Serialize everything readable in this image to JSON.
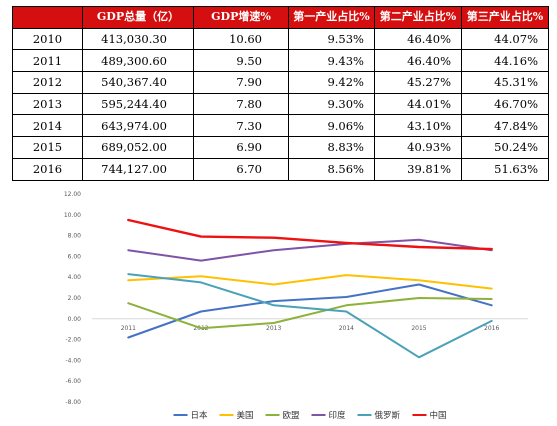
{
  "table": {
    "headers": [
      "",
      "GDP总量（亿）",
      "GDP增速%",
      "第一产业占比%",
      "第二产业占比%",
      "第三产业占比%"
    ],
    "rows": [
      [
        "2010",
        "413,030.30",
        "10.60",
        "9.53%",
        "46.40%",
        "44.07%"
      ],
      [
        "2011",
        "489,300.60",
        "9.50",
        "9.43%",
        "46.40%",
        "44.16%"
      ],
      [
        "2012",
        "540,367.40",
        "7.90",
        "9.42%",
        "45.27%",
        "45.31%"
      ],
      [
        "2013",
        "595,244.40",
        "7.80",
        "9.30%",
        "44.01%",
        "46.70%"
      ],
      [
        "2014",
        "643,974.00",
        "7.30",
        "9.06%",
        "43.10%",
        "47.84%"
      ],
      [
        "2015",
        "689,052.00",
        "6.90",
        "8.83%",
        "40.93%",
        "50.24%"
      ],
      [
        "2016",
        "744,127.00",
        "6.70",
        "8.56%",
        "39.81%",
        "51.63%"
      ]
    ]
  },
  "colors": {
    "header_bg": "#d50f0f",
    "header_text": "#ffffff"
  },
  "chart_data": {
    "type": "line",
    "categories": [
      "2011",
      "2012",
      "2013",
      "2014",
      "2015",
      "2016"
    ],
    "ylim": [
      -8,
      12
    ],
    "yticks": [
      "12.00",
      "10.00",
      "8.00",
      "6.00",
      "4.00",
      "2.00",
      "0.00",
      "-2.00",
      "-4.00",
      "-6.00",
      "-8.00"
    ],
    "grid": false,
    "legend_position": "bottom",
    "series": [
      {
        "name": "日本",
        "color": "#4472c4",
        "values": [
          -1.8,
          0.7,
          1.7,
          2.1,
          3.3,
          1.3
        ]
      },
      {
        "name": "美国",
        "color": "#ffc000",
        "values": [
          3.7,
          4.1,
          3.3,
          4.2,
          3.7,
          2.9
        ]
      },
      {
        "name": "欧盟",
        "color": "#8db13b",
        "values": [
          1.5,
          -0.9,
          -0.4,
          1.3,
          2.0,
          1.9
        ]
      },
      {
        "name": "印度",
        "color": "#7f53a7",
        "values": [
          6.6,
          5.6,
          6.6,
          7.2,
          7.6,
          6.6
        ]
      },
      {
        "name": "俄罗斯",
        "color": "#4aa1b8",
        "values": [
          4.3,
          3.5,
          1.3,
          0.7,
          -3.7,
          -0.2
        ]
      },
      {
        "name": "中国",
        "color": "#ee1111",
        "values": [
          9.5,
          7.9,
          7.8,
          7.3,
          6.9,
          6.7
        ]
      }
    ]
  }
}
